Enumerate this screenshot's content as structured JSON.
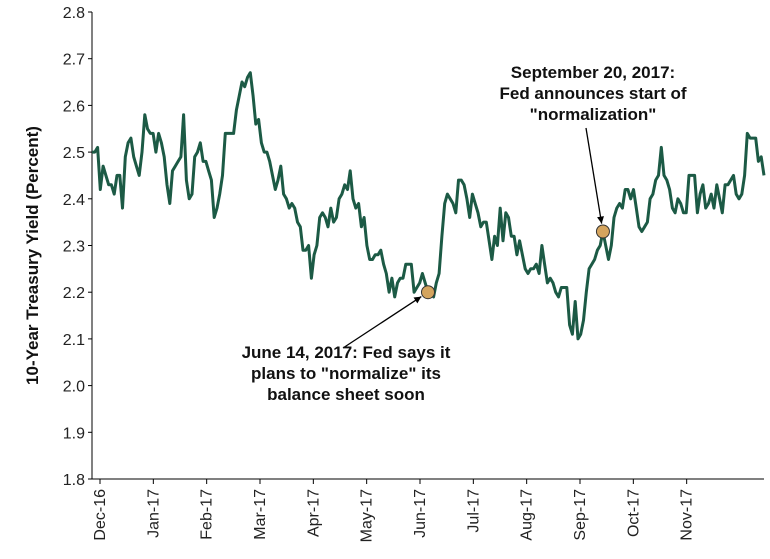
{
  "chart_data": {
    "type": "line",
    "title": "",
    "xlabel": "",
    "ylabel": "10-Year Treasury Yield (Percent)",
    "ylim": [
      1.8,
      2.8
    ],
    "yticks": [
      "2.8",
      "2.7",
      "2.6",
      "2.5",
      "2.4",
      "2.3",
      "2.2",
      "2.1",
      "2.0",
      "1.9",
      "1.8"
    ],
    "xticks": [
      "Dec-16",
      "Jan-17",
      "Feb-17",
      "Mar-17",
      "Apr-17",
      "May-17",
      "Jun-17",
      "Jul-17",
      "Aug-17",
      "Sep-17",
      "Oct-17",
      "Nov-17"
    ],
    "grid": false,
    "legend": "none",
    "colors": {
      "line": "#1c5a45",
      "marker": "#d4a45e"
    },
    "series": [
      {
        "values": [
          2.5,
          2.5,
          2.51,
          2.42,
          2.47,
          2.45,
          2.43,
          2.43,
          2.41,
          2.45,
          2.45,
          2.38,
          2.49,
          2.52,
          2.53,
          2.49,
          2.47,
          2.45,
          2.5,
          2.58,
          2.55,
          2.54,
          2.54,
          2.5,
          2.54,
          2.52,
          2.49,
          2.43,
          2.39,
          2.46,
          2.47,
          2.48,
          2.49,
          2.58,
          2.44,
          2.4,
          2.41,
          2.49,
          2.5,
          2.52,
          2.48,
          2.48,
          2.46,
          2.44,
          2.36,
          2.38,
          2.41,
          2.45,
          2.54,
          2.54,
          2.54,
          2.54,
          2.59,
          2.62,
          2.65,
          2.64,
          2.66,
          2.67,
          2.62,
          2.56,
          2.57,
          2.52,
          2.5,
          2.5,
          2.48,
          2.45,
          2.42,
          2.44,
          2.47,
          2.41,
          2.4,
          2.38,
          2.39,
          2.38,
          2.35,
          2.34,
          2.29,
          2.29,
          2.3,
          2.23,
          2.28,
          2.3,
          2.36,
          2.37,
          2.36,
          2.34,
          2.38,
          2.35,
          2.36,
          2.4,
          2.41,
          2.43,
          2.42,
          2.46,
          2.4,
          2.38,
          2.39,
          2.34,
          2.36,
          2.3,
          2.27,
          2.27,
          2.28,
          2.28,
          2.29,
          2.26,
          2.24,
          2.2,
          2.23,
          2.19,
          2.22,
          2.23,
          2.23,
          2.26,
          2.26,
          2.26,
          2.2,
          2.21,
          2.22,
          2.24,
          2.22,
          2.2,
          2.2,
          2.19,
          2.22,
          2.24,
          2.32,
          2.39,
          2.41,
          2.4,
          2.39,
          2.37,
          2.44,
          2.44,
          2.43,
          2.4,
          2.36,
          2.41,
          2.39,
          2.37,
          2.34,
          2.35,
          2.35,
          2.31,
          2.27,
          2.32,
          2.3,
          2.38,
          2.31,
          2.37,
          2.36,
          2.32,
          2.32,
          2.28,
          2.31,
          2.28,
          2.25,
          2.24,
          2.25,
          2.25,
          2.26,
          2.24,
          2.3,
          2.26,
          2.22,
          2.23,
          2.22,
          2.2,
          2.19,
          2.21,
          2.21,
          2.21,
          2.13,
          2.11,
          2.18,
          2.1,
          2.11,
          2.14,
          2.2,
          2.25,
          2.26,
          2.27,
          2.29,
          2.3,
          2.33,
          2.3,
          2.27,
          2.3,
          2.36,
          2.38,
          2.39,
          2.38,
          2.42,
          2.42,
          2.4,
          2.42,
          2.38,
          2.34,
          2.33,
          2.34,
          2.35,
          2.4,
          2.41,
          2.44,
          2.45,
          2.51,
          2.45,
          2.44,
          2.42,
          2.38,
          2.37,
          2.4,
          2.39,
          2.37,
          2.37,
          2.45,
          2.45,
          2.45,
          2.37,
          2.41,
          2.43,
          2.38,
          2.39,
          2.41,
          2.38,
          2.43,
          2.4,
          2.37,
          2.43,
          2.43,
          2.44,
          2.45,
          2.41,
          2.4,
          2.41,
          2.45,
          2.54,
          2.53,
          2.53,
          2.53,
          2.48,
          2.49,
          2.45
        ]
      }
    ],
    "annotations": [
      {
        "index": 121,
        "y": 2.2,
        "lines": [
          "June 14, 2017: Fed says it",
          "plans to \"normalize\" its",
          "balance sheet soon"
        ]
      },
      {
        "index": 184,
        "y": 2.33,
        "lines": [
          "September 20, 2017:",
          "Fed announces start of",
          "\"normalization\""
        ]
      }
    ]
  }
}
